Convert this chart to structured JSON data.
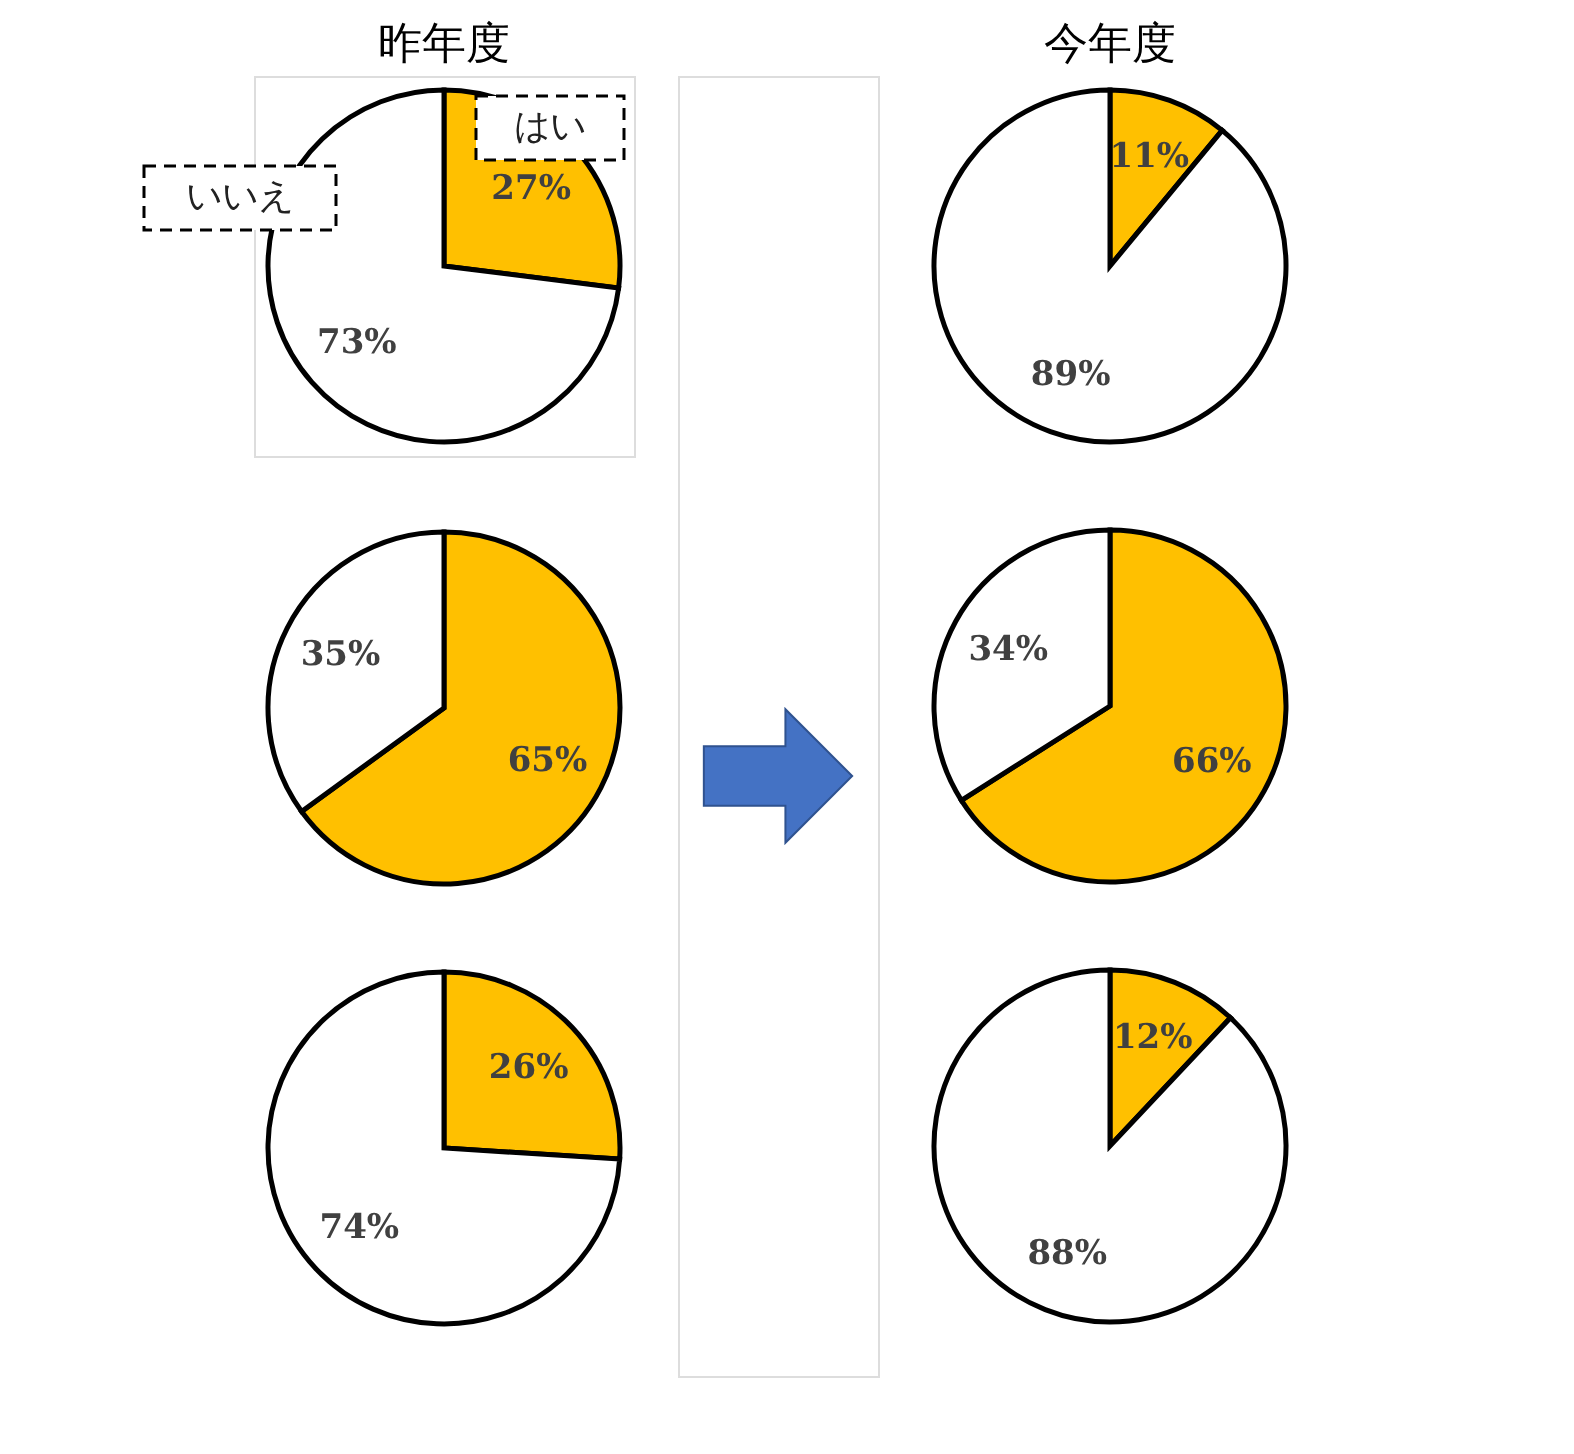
{
  "chart_data": [
    {
      "type": "pie",
      "title": "昨年度",
      "categories": [
        "はい",
        "いいえ"
      ],
      "values": [
        27,
        73
      ],
      "colors": [
        "#ffc000",
        "#ffffff"
      ],
      "value_labels": [
        "27%",
        "73%"
      ]
    },
    {
      "type": "pie",
      "categories": [
        null,
        null
      ],
      "values": [
        65,
        35
      ],
      "colors": [
        "#ffc000",
        "#ffffff"
      ],
      "value_labels": [
        "65%",
        "35%"
      ]
    },
    {
      "type": "pie",
      "categories": [
        null,
        null
      ],
      "values": [
        26,
        74
      ],
      "colors": [
        "#ffc000",
        "#ffffff"
      ],
      "value_labels": [
        "26%",
        "74%"
      ]
    },
    {
      "type": "pie",
      "title": "今年度",
      "categories": [
        null,
        null
      ],
      "values": [
        11,
        89
      ],
      "colors": [
        "#ffc000",
        "#ffffff"
      ],
      "value_labels": [
        "11%",
        "89%"
      ]
    },
    {
      "type": "pie",
      "categories": [
        null,
        null
      ],
      "values": [
        66,
        34
      ],
      "colors": [
        "#ffc000",
        "#ffffff"
      ],
      "value_labels": [
        "66%",
        "34%"
      ]
    },
    {
      "type": "pie",
      "categories": [
        null,
        null
      ],
      "values": [
        12,
        88
      ],
      "colors": [
        "#ffc000",
        "#ffffff"
      ],
      "value_labels": [
        "12%",
        "88%"
      ]
    }
  ]
}
